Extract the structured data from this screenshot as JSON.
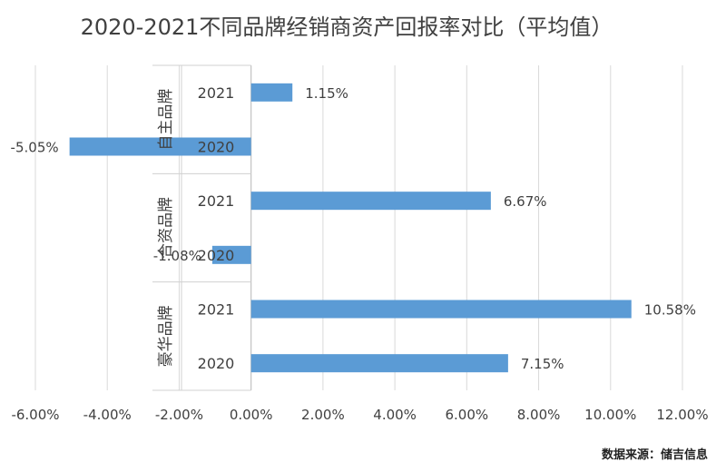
{
  "chart_data": {
    "type": "bar",
    "orientation": "horizontal",
    "title": "2020-2021不同品牌经销商资产回报率对比（平均值）",
    "xlabel": "",
    "ylabel": "",
    "xlim": [
      -6,
      12
    ],
    "x_ticks": [
      "-6.00%",
      "-4.00%",
      "-2.00%",
      "0.00%",
      "2.00%",
      "4.00%",
      "6.00%",
      "8.00%",
      "10.00%",
      "12.00%"
    ],
    "grid": true,
    "legend": "none",
    "bar_color": "#5B9BD5",
    "groups": [
      {
        "name": "自主品牌",
        "items": [
          {
            "year": "2021",
            "value": 1.15,
            "label": "1.15%"
          },
          {
            "year": "2020",
            "value": -5.05,
            "label": "-5.05%"
          }
        ]
      },
      {
        "name": "合资品牌",
        "items": [
          {
            "year": "2021",
            "value": 6.67,
            "label": "6.67%"
          },
          {
            "year": "2020",
            "value": -1.08,
            "label": "-1.08%"
          }
        ]
      },
      {
        "name": "豪华品牌",
        "items": [
          {
            "year": "2021",
            "value": 10.58,
            "label": "10.58%"
          },
          {
            "year": "2020",
            "value": 7.15,
            "label": "7.15%"
          }
        ]
      }
    ]
  },
  "source": "数据来源：储吉信息"
}
